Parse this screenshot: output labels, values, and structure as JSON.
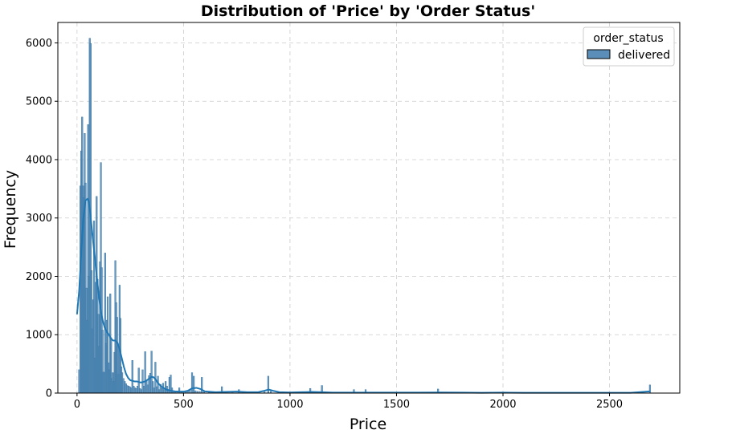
{
  "chart_data": {
    "type": "bar",
    "title": "Distribution of 'Price' by 'Order Status'",
    "xlabel": "Price",
    "ylabel": "Frequency",
    "xlim": [
      -90,
      2830
    ],
    "ylim": [
      0,
      6350
    ],
    "xticks": [
      0,
      500,
      1000,
      1500,
      2000,
      2500
    ],
    "yticks": [
      0,
      1000,
      2000,
      3000,
      4000,
      5000,
      6000
    ],
    "grid": true,
    "legend": {
      "title": "order_status",
      "placement": "top-right",
      "entries": [
        "delivered"
      ]
    },
    "colors": {
      "bar_fill": "#5b8fb9",
      "bar_edge": "#2f6f9f",
      "kde_line": "#1f77b4",
      "grid": "#cccccc"
    },
    "series": [
      {
        "name": "delivered",
        "histogram": {
          "bin_width": 6.7,
          "bars": [
            [
              10,
              400
            ],
            [
              16,
              3550
            ],
            [
              20,
              4150
            ],
            [
              24,
              4730
            ],
            [
              28,
              3550
            ],
            [
              32,
              3350
            ],
            [
              36,
              4450
            ],
            [
              40,
              3600
            ],
            [
              44,
              1800
            ],
            [
              48,
              1250
            ],
            [
              52,
              4600
            ],
            [
              56,
              2000
            ],
            [
              60,
              6080
            ],
            [
              64,
              5990
            ],
            [
              68,
              2100
            ],
            [
              72,
              1100
            ],
            [
              76,
              1600
            ],
            [
              80,
              2950
            ],
            [
              84,
              600
            ],
            [
              88,
              1900
            ],
            [
              92,
              3370
            ],
            [
              96,
              1950
            ],
            [
              100,
              1350
            ],
            [
              104,
              800
            ],
            [
              108,
              2250
            ],
            [
              112,
              3950
            ],
            [
              116,
              2150
            ],
            [
              120,
              1080
            ],
            [
              124,
              360
            ],
            [
              128,
              350
            ],
            [
              132,
              2400
            ],
            [
              136,
              850
            ],
            [
              140,
              1250
            ],
            [
              144,
              1650
            ],
            [
              148,
              520
            ],
            [
              152,
              400
            ],
            [
              156,
              1700
            ],
            [
              160,
              950
            ],
            [
              164,
              250
            ],
            [
              168,
              350
            ],
            [
              172,
              200
            ],
            [
              176,
              700
            ],
            [
              180,
              2270
            ],
            [
              184,
              1550
            ],
            [
              188,
              1300
            ],
            [
              192,
              800
            ],
            [
              196,
              320
            ],
            [
              200,
              1850
            ],
            [
              204,
              1280
            ],
            [
              208,
              450
            ],
            [
              212,
              350
            ],
            [
              218,
              250
            ],
            [
              224,
              200
            ],
            [
              230,
              160
            ],
            [
              236,
              130
            ],
            [
              242,
              120
            ],
            [
              248,
              110
            ],
            [
              254,
              90
            ],
            [
              260,
              560
            ],
            [
              266,
              120
            ],
            [
              272,
              90
            ],
            [
              278,
              80
            ],
            [
              284,
              120
            ],
            [
              290,
              430
            ],
            [
              296,
              80
            ],
            [
              302,
              60
            ],
            [
              308,
              400
            ],
            [
              314,
              120
            ],
            [
              320,
              710
            ],
            [
              326,
              220
            ],
            [
              332,
              140
            ],
            [
              338,
              300
            ],
            [
              344,
              340
            ],
            [
              350,
              720
            ],
            [
              356,
              200
            ],
            [
              362,
              90
            ],
            [
              368,
              530
            ],
            [
              374,
              110
            ],
            [
              380,
              290
            ],
            [
              386,
              60
            ],
            [
              392,
              150
            ],
            [
              398,
              80
            ],
            [
              404,
              170
            ],
            [
              410,
              60
            ],
            [
              416,
              200
            ],
            [
              422,
              120
            ],
            [
              428,
              60
            ],
            [
              434,
              270
            ],
            [
              440,
              310
            ],
            [
              446,
              90
            ],
            [
              452,
              40
            ],
            [
              460,
              30
            ],
            [
              470,
              30
            ],
            [
              480,
              90
            ],
            [
              490,
              25
            ],
            [
              500,
              25
            ],
            [
              510,
              30
            ],
            [
              520,
              30
            ],
            [
              530,
              60
            ],
            [
              540,
              350
            ],
            [
              548,
              290
            ],
            [
              556,
              40
            ],
            [
              566,
              30
            ],
            [
              576,
              30
            ],
            [
              586,
              270
            ],
            [
              596,
              20
            ],
            [
              620,
              15
            ],
            [
              650,
              15
            ],
            [
              680,
              110
            ],
            [
              700,
              15
            ],
            [
              730,
              15
            ],
            [
              760,
              60
            ],
            [
              800,
              15
            ],
            [
              840,
              15
            ],
            [
              880,
              20
            ],
            [
              898,
              290
            ],
            [
              910,
              30
            ],
            [
              950,
              10
            ],
            [
              1000,
              10
            ],
            [
              1050,
              10
            ],
            [
              1095,
              80
            ],
            [
              1110,
              15
            ],
            [
              1150,
              130
            ],
            [
              1200,
              10
            ],
            [
              1250,
              10
            ],
            [
              1300,
              60
            ],
            [
              1355,
              60
            ],
            [
              1400,
              10
            ],
            [
              1500,
              10
            ],
            [
              1600,
              10
            ],
            [
              1695,
              70
            ],
            [
              1800,
              10
            ],
            [
              1900,
              10
            ],
            [
              2000,
              10
            ],
            [
              2010,
              15
            ],
            [
              2100,
              5
            ],
            [
              2200,
              5
            ],
            [
              2300,
              5
            ],
            [
              2400,
              5
            ],
            [
              2500,
              5
            ],
            [
              2600,
              5
            ],
            [
              2690,
              140
            ]
          ]
        },
        "kde": {
          "x": [
            0,
            10,
            20,
            30,
            40,
            50,
            55,
            60,
            70,
            80,
            90,
            100,
            110,
            120,
            130,
            140,
            150,
            160,
            170,
            180,
            190,
            200,
            210,
            220,
            230,
            240,
            250,
            260,
            270,
            280,
            290,
            300,
            320,
            340,
            350,
            360,
            370,
            380,
            400,
            420,
            440,
            460,
            480,
            500,
            520,
            540,
            560,
            580,
            600,
            650,
            700,
            750,
            800,
            850,
            880,
            900,
            920,
            950,
            1000,
            1050,
            1100,
            1150,
            1200,
            1300,
            1400,
            1500,
            1600,
            1700,
            1800,
            1900,
            2000,
            2100,
            2200,
            2300,
            2400,
            2500,
            2600,
            2690
          ],
          "y": [
            1350,
            1750,
            2400,
            3000,
            3300,
            3330,
            3280,
            3150,
            2800,
            2450,
            2100,
            1750,
            1450,
            1250,
            1120,
            1050,
            1000,
            930,
            900,
            900,
            860,
            750,
            600,
            450,
            330,
            260,
            220,
            210,
            200,
            200,
            190,
            180,
            200,
            250,
            280,
            270,
            230,
            170,
            100,
            60,
            40,
            30,
            25,
            25,
            40,
            80,
            90,
            70,
            30,
            15,
            20,
            25,
            15,
            15,
            40,
            60,
            40,
            15,
            10,
            15,
            20,
            15,
            8,
            8,
            8,
            8,
            8,
            10,
            8,
            5,
            8,
            5,
            5,
            5,
            5,
            5,
            5,
            30
          ]
        }
      }
    ]
  }
}
